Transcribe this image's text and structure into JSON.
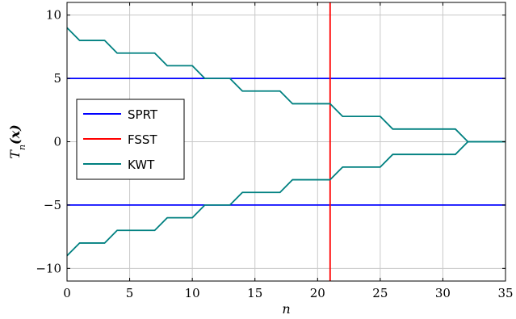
{
  "chart_data": {
    "type": "line",
    "title": "",
    "xlabel": "n",
    "ylabel": "T",
    "ylabel_sub": "n",
    "ylabel_arg": "(x)",
    "xlim": [
      0,
      35
    ],
    "ylim": [
      -11,
      11
    ],
    "x_ticks": [
      0,
      5,
      10,
      15,
      20,
      25,
      30,
      35
    ],
    "y_ticks": [
      -10,
      -5,
      0,
      5,
      10
    ],
    "x_tick_labels": [
      "0",
      "5",
      "10",
      "15",
      "20",
      "25",
      "30",
      "35"
    ],
    "y_tick_labels": [
      "−10",
      "−5",
      "0",
      "5",
      "10"
    ],
    "grid": true,
    "legend_position": "center-left",
    "series": [
      {
        "name": "SPRT",
        "color": "#0000ff",
        "lines": [
          [
            [
              0,
              5
            ],
            [
              35,
              5
            ]
          ],
          [
            [
              0,
              -5
            ],
            [
              35,
              -5
            ]
          ]
        ]
      },
      {
        "name": "FSST",
        "color": "#ff0000",
        "lines": [
          [
            [
              21,
              -11
            ],
            [
              21,
              11
            ]
          ]
        ]
      },
      {
        "name": "KWT",
        "color": "#008080",
        "lines": [
          [
            [
              0,
              9
            ],
            [
              1,
              8
            ],
            [
              3,
              8
            ],
            [
              4,
              7
            ],
            [
              7,
              7
            ],
            [
              8,
              6
            ],
            [
              10,
              6
            ],
            [
              11,
              5
            ],
            [
              13,
              5
            ],
            [
              14,
              4
            ],
            [
              17,
              4
            ],
            [
              18,
              3
            ],
            [
              21,
              3
            ],
            [
              22,
              2
            ],
            [
              25,
              2
            ],
            [
              26,
              1
            ],
            [
              31,
              1
            ],
            [
              32,
              0
            ],
            [
              35,
              0
            ]
          ],
          [
            [
              0,
              -9
            ],
            [
              1,
              -8
            ],
            [
              3,
              -8
            ],
            [
              4,
              -7
            ],
            [
              7,
              -7
            ],
            [
              8,
              -6
            ],
            [
              10,
              -6
            ],
            [
              11,
              -5
            ],
            [
              13,
              -5
            ],
            [
              14,
              -4
            ],
            [
              17,
              -4
            ],
            [
              18,
              -3
            ],
            [
              21,
              -3
            ],
            [
              22,
              -2
            ],
            [
              25,
              -2
            ],
            [
              26,
              -1
            ],
            [
              31,
              -1
            ],
            [
              32,
              0
            ],
            [
              35,
              0
            ]
          ]
        ]
      }
    ]
  }
}
